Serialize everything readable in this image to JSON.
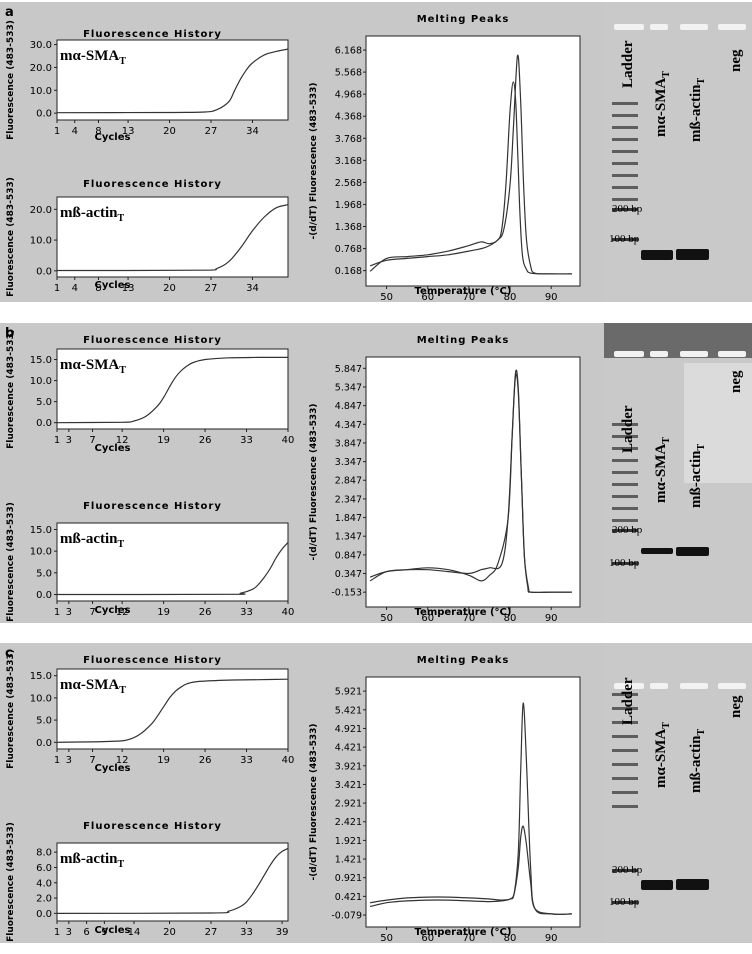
{
  "panels": [
    {
      "letter": "a",
      "fluor": [
        {
          "title": "Fluorescence History",
          "ylabel": "Fluorescence (483-533)",
          "xlabel": "Cycles",
          "label_main": "mα-SMA",
          "label_sub": "T",
          "chart_data": {
            "type": "line",
            "title": "Fluorescence History",
            "xlabel": "Cycles",
            "ylabel": "Fluorescence (483-533)",
            "xlim": [
              1,
              40
            ],
            "ylim": [
              -3,
              32
            ],
            "xticks": [
              "1",
              "4",
              "8",
              "13",
              "20",
              "27",
              "34"
            ],
            "yticks": [
              "30.0",
              "20.0",
              "10.0",
              "0.0"
            ],
            "series": [
              {
                "x": [
                  1,
                  20,
                  26,
                  28,
                  30,
                  31,
                  32,
                  33,
                  34,
                  36,
                  38,
                  40
                ],
                "y": [
                  0.2,
                  0.3,
                  0.5,
                  1.5,
                  5,
                  10,
                  15,
                  19,
                  22,
                  25.5,
                  27,
                  28
                ]
              }
            ]
          }
        },
        {
          "title": "Fluorescence History",
          "ylabel": "Fluorescence (483-533)",
          "xlabel": "Cycles",
          "label_main": "mß-actin",
          "label_sub": "T",
          "chart_data": {
            "type": "line",
            "title": "Fluorescence History",
            "xlabel": "Cycles",
            "ylabel": "Fluorescence (483-533)",
            "xlim": [
              1,
              40
            ],
            "ylim": [
              -2,
              24
            ],
            "xticks": [
              "1",
              "4",
              "8",
              "13",
              "20",
              "27",
              "34"
            ],
            "yticks": [
              "20.0",
              "10.0",
              "0.0"
            ],
            "series": [
              {
                "x": [
                  1,
                  25,
                  28,
                  30,
                  32,
                  34,
                  36,
                  38,
                  40
                ],
                "y": [
                  0.1,
                  0.2,
                  0.8,
                  3,
                  7.5,
                  13,
                  17.5,
                  20.5,
                  21.5
                ]
              }
            ]
          }
        }
      ],
      "melt": {
        "title": "Melting Peaks",
        "ylabel": "-(d/dT) Fluorescence (483-533)",
        "xlabel": "Temperature (°C)",
        "chart_data": {
          "type": "line",
          "title": "Melting Peaks",
          "xlabel": "Temperature (°C)",
          "ylabel": "-(d/dT) Fluorescence (483-533)",
          "xlim": [
            45,
            97
          ],
          "ylim": [
            -0.25,
            6.55
          ],
          "xticks": [
            50,
            60,
            70,
            80,
            90
          ],
          "yticks": [
            "6.168",
            "5.568",
            "4.968",
            "4.368",
            "3.768",
            "3.168",
            "2.568",
            "1.968",
            "1.368",
            "0.768",
            "0.168"
          ],
          "series": [
            {
              "x": [
                46,
                50,
                55,
                60,
                65,
                70,
                73,
                75,
                77,
                78,
                79,
                80,
                80.8,
                81.5,
                82.3,
                83,
                84,
                85,
                88,
                95
              ],
              "y": [
                0.15,
                0.5,
                0.55,
                0.6,
                0.7,
                0.85,
                0.95,
                0.9,
                1.0,
                1.3,
                2.5,
                4.5,
                5.3,
                4.5,
                2.0,
                0.6,
                0.2,
                0.1,
                0.08,
                0.08
              ]
            },
            {
              "x": [
                46,
                50,
                55,
                60,
                65,
                70,
                74,
                77,
                78.5,
                80,
                80.8,
                81.8,
                82.5,
                83.3,
                84,
                85,
                86,
                90,
                95
              ],
              "y": [
                0.3,
                0.45,
                0.5,
                0.55,
                0.6,
                0.7,
                0.8,
                1.0,
                1.3,
                2.5,
                4.0,
                6.0,
                5.0,
                2.5,
                1.0,
                0.3,
                0.1,
                0.08,
                0.08
              ]
            }
          ]
        }
      },
      "gel": {
        "ladder": "Ladder",
        "lane1": "mα-SMA",
        "lane1_sub": "T",
        "lane2": "mß-actin",
        "lane2_sub": "T",
        "neg": "neg",
        "bp_top": "200 bp",
        "bp_bottom": "100 bp"
      }
    },
    {
      "letter": "b",
      "fluor": [
        {
          "title": "Fluorescence History",
          "ylabel": "Fluorescence (483-533)",
          "xlabel": "Cycles",
          "label_main": "mα-SMA",
          "label_sub": "T",
          "chart_data": {
            "type": "line",
            "title": "Fluorescence History",
            "xlabel": "Cycles",
            "ylabel": "Fluorescence (483-533)",
            "xlim": [
              1,
              40
            ],
            "ylim": [
              -1.5,
              17.5
            ],
            "xticks": [
              "1",
              "3",
              "7",
              "12",
              "19",
              "26",
              "33",
              "40"
            ],
            "yticks": [
              "15.0",
              "10.0",
              "5.0",
              "0.0"
            ],
            "series": [
              {
                "x": [
                  1,
                  12,
                  14,
                  16,
                  18,
                  19,
                  20,
                  21,
                  22,
                  23,
                  24,
                  26,
                  30,
                  35,
                  40
                ],
                "y": [
                  0,
                  0.1,
                  0.4,
                  1.5,
                  4,
                  6,
                  8.5,
                  10.8,
                  12.4,
                  13.5,
                  14.3,
                  15.0,
                  15.4,
                  15.5,
                  15.5
                ]
              }
            ]
          }
        },
        {
          "title": "Fluorescence History",
          "ylabel": "Fluorescence (483-533)",
          "xlabel": "Cycles",
          "label_main": "mß-actin",
          "label_sub": "T",
          "chart_data": {
            "type": "line",
            "title": "Fluorescence History",
            "xlabel": "Cycles",
            "ylabel": "Fluorescence (483-533)",
            "xlim": [
              1,
              40
            ],
            "ylim": [
              -1.5,
              16.5
            ],
            "xticks": [
              "1",
              "3",
              "7",
              "12",
              "19",
              "26",
              "33",
              "40"
            ],
            "yticks": [
              "15.0",
              "10.0",
              "5.0",
              "0.0"
            ],
            "series": [
              {
                "x": [
                  1,
                  30,
                  32,
                  34,
                  35,
                  36,
                  37,
                  38,
                  39,
                  40
                ],
                "y": [
                  0,
                  0.05,
                  0.3,
                  1.2,
                  2.3,
                  4,
                  6,
                  8.5,
                  10.5,
                  12
                ]
              }
            ]
          }
        }
      ],
      "melt": {
        "title": "Melting Peaks",
        "ylabel": "-(d/dT) Fluorescence (483-533)",
        "xlabel": "Temperature (°C)",
        "chart_data": {
          "type": "line",
          "title": "Melting Peaks",
          "xlabel": "Temperature (°C)",
          "ylabel": "-(d/dT) Fluorescence (483-533)",
          "xlim": [
            45,
            97
          ],
          "ylim": [
            -0.55,
            6.15
          ],
          "xticks": [
            50,
            60,
            70,
            80,
            90
          ],
          "yticks": [
            "5.847",
            "5.347",
            "4.847",
            "4.347",
            "3.847",
            "3.347",
            "2.847",
            "2.347",
            "1.847",
            "1.347",
            "0.847",
            "0.347",
            "-0.153"
          ],
          "series": [
            {
              "x": [
                46,
                50,
                55,
                60,
                65,
                70,
                73,
                75,
                78,
                79.5,
                80.5,
                81.3,
                82,
                82.8,
                83.5,
                84.3,
                85,
                90,
                95
              ],
              "y": [
                0.15,
                0.4,
                0.45,
                0.45,
                0.4,
                0.35,
                0.45,
                0.5,
                0.6,
                1.8,
                4.0,
                5.6,
                5.2,
                2.8,
                0.8,
                0.0,
                -0.15,
                -0.15,
                -0.15
              ]
            },
            {
              "x": [
                46,
                50,
                55,
                60,
                65,
                70,
                73,
                75,
                77,
                79.5,
                80.5,
                81.3,
                82,
                82.8,
                83.5,
                84.5,
                85,
                90,
                95
              ],
              "y": [
                0.25,
                0.4,
                0.45,
                0.5,
                0.45,
                0.3,
                0.15,
                0.3,
                0.6,
                1.8,
                4.0,
                5.7,
                5.3,
                2.8,
                0.8,
                -0.05,
                -0.15,
                -0.15,
                -0.15
              ]
            }
          ]
        }
      },
      "gel": {
        "ladder": "Ladder",
        "lane1": "mα-SMA",
        "lane1_sub": "T",
        "lane2": "mß-actin",
        "lane2_sub": "T",
        "neg": "neg",
        "bp_top": "200 bp",
        "bp_bottom": "100 bp"
      }
    },
    {
      "letter": "c",
      "fluor": [
        {
          "title": "Fluorescence History",
          "ylabel": "Fluorescence (483-533)",
          "xlabel": "Cycles",
          "label_main": "mα-SMA",
          "label_sub": "T",
          "chart_data": {
            "type": "line",
            "title": "Fluorescence History",
            "xlabel": "Cycles",
            "ylabel": "Fluorescence (483-533)",
            "xlim": [
              1,
              40
            ],
            "ylim": [
              -1.5,
              16.5
            ],
            "xticks": [
              "1",
              "3",
              "7",
              "12",
              "19",
              "26",
              "33",
              "40"
            ],
            "yticks": [
              "15.0",
              "10.0",
              "5.0",
              "0.0"
            ],
            "series": [
              {
                "x": [
                  1,
                  10,
                  13,
                  15,
                  17,
                  18,
                  19,
                  20,
                  21,
                  22,
                  23,
                  25,
                  30,
                  35,
                  40
                ],
                "y": [
                  0,
                  0.2,
                  0.6,
                  1.8,
                  4.2,
                  6,
                  8,
                  10,
                  11.5,
                  12.5,
                  13.2,
                  13.7,
                  14,
                  14.1,
                  14.2
                ]
              }
            ]
          }
        },
        {
          "title": "Fluorescence History",
          "ylabel": "Fluorescence (483-533)",
          "xlabel": "Cycles",
          "label_main": "mß-actin",
          "label_sub": "T",
          "chart_data": {
            "type": "line",
            "title": "Fluorescence History",
            "xlabel": "Cycles",
            "ylabel": "Fluorescence (483-533)",
            "xlim": [
              1,
              40
            ],
            "ylim": [
              -1,
              9.2
            ],
            "xticks": [
              "1",
              "3",
              "6",
              "9",
              "14",
              "20",
              "27",
              "33",
              "39"
            ],
            "yticks": [
              "8.0",
              "6.0",
              "4.0",
              "2.0",
              "0.0"
            ],
            "series": [
              {
                "x": [
                  1,
                  27,
                  30,
                  32,
                  33,
                  34,
                  35,
                  36,
                  37,
                  38,
                  39,
                  40
                ],
                "y": [
                  0,
                  0.05,
                  0.3,
                  0.9,
                  1.5,
                  2.5,
                  3.7,
                  5,
                  6.3,
                  7.4,
                  8.1,
                  8.5
                ]
              }
            ]
          }
        }
      ],
      "melt": {
        "title": "Melting Peaks",
        "ylabel": "-(d/dT) Fluorescence (483-533)",
        "xlabel": "Temperature (°C)",
        "chart_data": {
          "type": "line",
          "title": "Melting Peaks",
          "xlabel": "Temperature (°C)",
          "ylabel": "-(d/dT) Fluorescence (483-533)",
          "xlim": [
            45,
            97
          ],
          "ylim": [
            -0.4,
            6.3
          ],
          "xticks": [
            50,
            60,
            70,
            80,
            90
          ],
          "yticks": [
            "5.921",
            "5.421",
            "4.921",
            "4.421",
            "3.921",
            "3.421",
            "2.921",
            "2.421",
            "1.921",
            "1.421",
            "0.921",
            "0.421",
            "-0.079"
          ],
          "series": [
            {
              "x": [
                46,
                50,
                55,
                60,
                65,
                70,
                75,
                78,
                80,
                81,
                82,
                82.6,
                83.2,
                84,
                85,
                86,
                90,
                95
              ],
              "y": [
                0.15,
                0.25,
                0.3,
                0.32,
                0.32,
                0.3,
                0.28,
                0.3,
                0.35,
                0.5,
                1.6,
                3.8,
                5.6,
                4.0,
                1.2,
                0.1,
                -0.05,
                -0.05
              ]
            },
            {
              "x": [
                46,
                50,
                55,
                60,
                65,
                70,
                75,
                78,
                80,
                81,
                82,
                82.6,
                83.2,
                84,
                85,
                86,
                90,
                95
              ],
              "y": [
                0.25,
                0.32,
                0.38,
                0.4,
                0.4,
                0.38,
                0.35,
                0.32,
                0.35,
                0.5,
                1.2,
                2.0,
                2.3,
                1.8,
                0.8,
                0.1,
                -0.05,
                -0.05
              ]
            }
          ]
        }
      },
      "gel": {
        "ladder": "Ladder",
        "lane1": "mα-SMA",
        "lane1_sub": "T",
        "lane2": "mß-actin",
        "lane2_sub": "T",
        "neg": "neg",
        "bp_top": "200 bp",
        "bp_bottom": "100 bp"
      }
    }
  ],
  "colors": {
    "panel_bg": "#c8c8c8",
    "plot_bg": "#ffffff",
    "line": "#333333",
    "gel_bg": "#c9c9c9"
  }
}
